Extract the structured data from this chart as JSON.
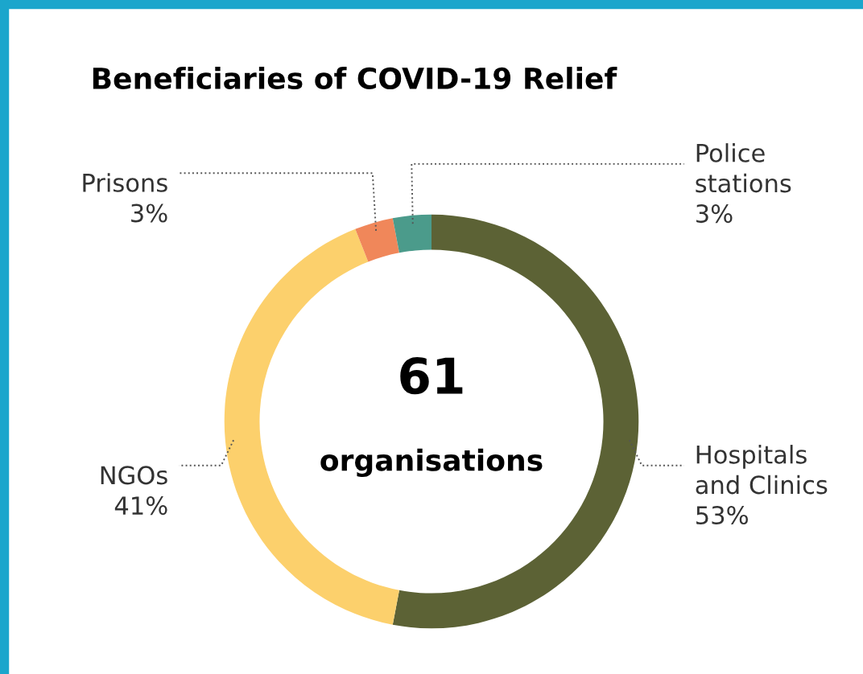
{
  "chart_data": {
    "type": "donut",
    "title": "Beneficiaries of COVID-19 Relief",
    "categories": [
      "Hospitals\nand Clinics",
      "NGOs",
      "Prisons",
      "Police\nstations"
    ],
    "values": [
      53,
      41,
      3,
      3
    ],
    "value_labels": [
      "53%",
      "41%",
      "3%",
      "3%"
    ],
    "colors": [
      "#5c6235",
      "#fcd06c",
      "#f0875a",
      "#4b9b8b"
    ],
    "annotations": [
      "61",
      "organisations"
    ]
  }
}
